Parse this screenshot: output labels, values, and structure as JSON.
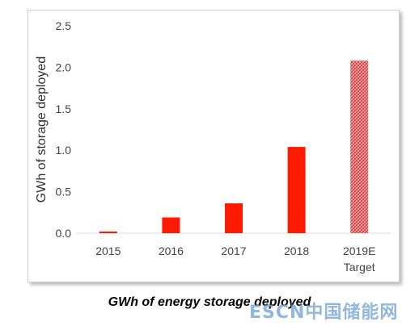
{
  "chart_data": {
    "type": "bar",
    "title": "",
    "xlabel": "",
    "ylabel": "GWh of  storage deployed",
    "categories": [
      "2015",
      "2016",
      "2017",
      "2018",
      "2019E"
    ],
    "category_sublabels": [
      "",
      "",
      "",
      "",
      "Target"
    ],
    "values": [
      0.02,
      0.19,
      0.36,
      1.04,
      2.08
    ],
    "yticks": [
      "0.0",
      "0.5",
      "1.0",
      "1.5",
      "2.0",
      "2.5"
    ],
    "ylim": [
      0,
      2.5
    ],
    "grid": false,
    "bar_color": "#ff1a00",
    "target_bar_style": "hatched",
    "target_bar_color": "#d84a4a"
  },
  "caption": "GWh of energy storage deployed",
  "watermark": "ESCN中国储能网"
}
